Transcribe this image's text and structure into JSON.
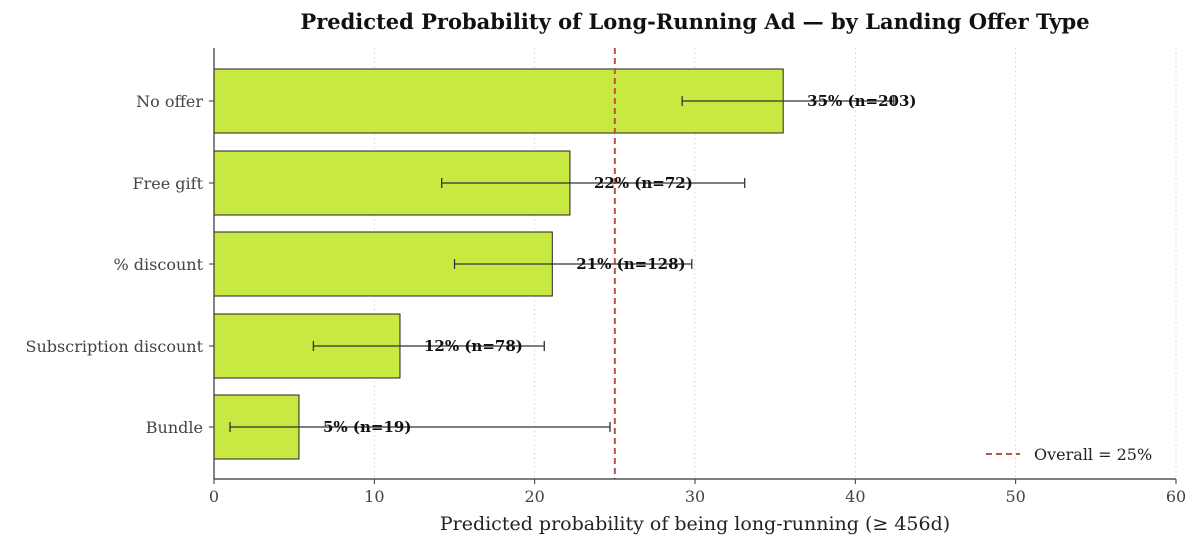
{
  "chart_data": {
    "type": "bar",
    "orientation": "horizontal",
    "title": "Predicted Probability of Long-Running Ad — by Landing Offer Type",
    "xlabel": "Predicted probability of being long-running (≥ 456d)",
    "ylabel": "",
    "xlim": [
      0,
      60
    ],
    "xticks": [
      0,
      10,
      20,
      30,
      40,
      50,
      60
    ],
    "xtick_labels": [
      "0",
      "10",
      "20",
      "30",
      "40",
      "50",
      "60"
    ],
    "grid": "vertical dotted",
    "categories": [
      "No offer",
      "Free gift",
      "% discount",
      "Subscription discount",
      "Bundle"
    ],
    "values": [
      35.5,
      22.2,
      21.1,
      11.6,
      5.3
    ],
    "error_low": [
      29.2,
      14.2,
      15.0,
      6.2,
      1.0
    ],
    "error_high": [
      42.4,
      33.1,
      29.8,
      20.6,
      24.7
    ],
    "data_labels": [
      "35% (n=203)",
      "22% (n=72)",
      "21% (n=128)",
      "12% (n=78)",
      "5% (n=19)"
    ],
    "reference_line": {
      "value": 25,
      "label": "Overall = 25%",
      "style": "dashed"
    },
    "legend": {
      "position": "bottom-right",
      "entries": [
        "Overall = 25%"
      ]
    },
    "colors": {
      "bar": "#c8e842",
      "bar_edge": "#222222",
      "reference": "#c0504d",
      "error": "#333333"
    }
  }
}
